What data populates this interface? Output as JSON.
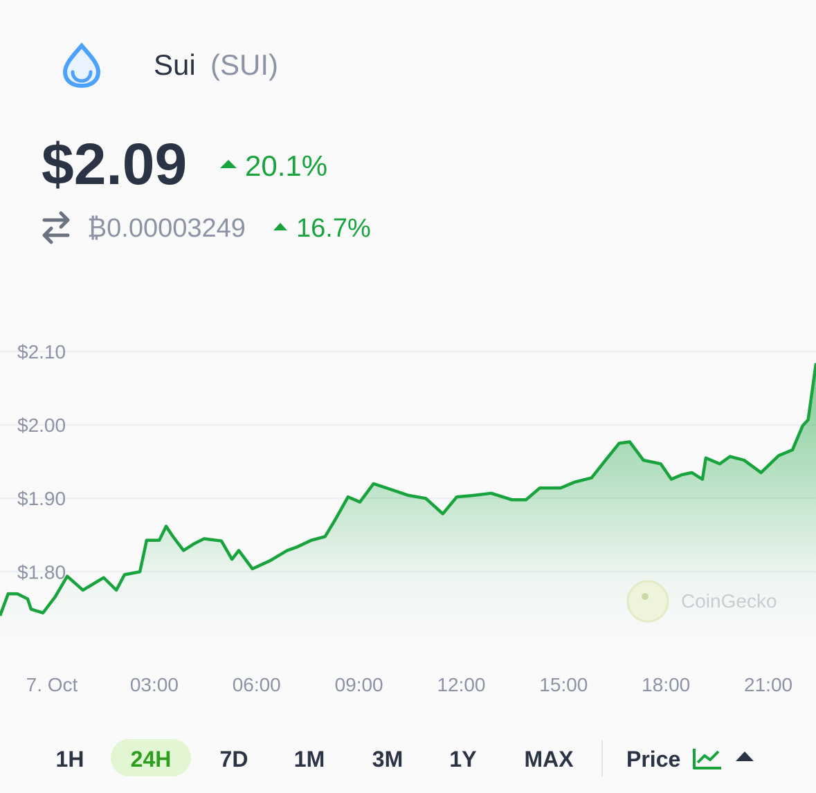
{
  "header": {
    "name": "Sui",
    "symbol": "(SUI)"
  },
  "price": "$2.09",
  "price_change": "20.1%",
  "btc_price": "₿0.00003249",
  "btc_change": "16.7%",
  "watermark": "CoinGecko",
  "range_tabs": [
    "1H",
    "24H",
    "7D",
    "1M",
    "3M",
    "1Y",
    "MAX"
  ],
  "active_tab": 1,
  "metric": "Price",
  "chart_data": {
    "type": "line",
    "color": "#18a33c",
    "grid": true,
    "x": [
      -1.4,
      -1.16,
      -0.89,
      -0.59,
      -0.49,
      -0.14,
      0.22,
      0.57,
      1.03,
      1.64,
      2.01,
      2.25,
      2.7,
      2.9,
      3.27,
      3.47,
      3.67,
      3.98,
      4.28,
      4.58,
      5.09,
      5.4,
      5.6,
      6.0,
      6.51,
      7.02,
      7.32,
      7.73,
      8.13,
      8.44,
      8.8,
      9.15,
      9.55,
      10.06,
      10.57,
      11.08,
      11.58,
      11.99,
      12.49,
      13.0,
      13.61,
      14.02,
      14.42,
      15.03,
      15.44,
      15.94,
      16.35,
      16.75,
      17.06,
      17.46,
      17.97,
      18.28,
      18.58,
      18.88,
      19.19,
      19.29,
      19.7,
      20.0,
      20.41,
      20.91,
      21.42,
      21.83,
      22.13,
      22.29,
      22.52
    ],
    "values": [
      1.74,
      1.77,
      1.77,
      1.763,
      1.749,
      1.744,
      1.766,
      1.794,
      1.775,
      1.792,
      1.775,
      1.796,
      1.8,
      1.843,
      1.843,
      1.862,
      1.848,
      1.829,
      1.838,
      1.845,
      1.842,
      1.817,
      1.829,
      1.804,
      1.815,
      1.829,
      1.834,
      1.843,
      1.848,
      1.872,
      1.902,
      1.895,
      1.92,
      1.912,
      1.904,
      1.9,
      1.879,
      1.902,
      1.904,
      1.907,
      1.898,
      1.898,
      1.914,
      1.914,
      1.922,
      1.928,
      1.952,
      1.975,
      1.977,
      1.952,
      1.947,
      1.926,
      1.932,
      1.935,
      1.926,
      1.955,
      1.947,
      1.957,
      1.952,
      1.935,
      1.958,
      1.966,
      1.999,
      2.007,
      2.084
    ],
    "xlim": [
      -1.4,
      22.52
    ],
    "ylim": [
      1.69,
      2.165
    ],
    "xticks": [
      {
        "value": 0,
        "label": "7. Oct"
      },
      {
        "value": 3,
        "label": "03:00"
      },
      {
        "value": 6,
        "label": "06:00"
      },
      {
        "value": 9,
        "label": "09:00"
      },
      {
        "value": 12,
        "label": "12:00"
      },
      {
        "value": 15,
        "label": "15:00"
      },
      {
        "value": 18,
        "label": "18:00"
      },
      {
        "value": 21,
        "label": "21:00"
      }
    ],
    "yticks": [
      {
        "value": 1.8,
        "label": "$1.80"
      },
      {
        "value": 1.9,
        "label": "$1.90"
      },
      {
        "value": 2.0,
        "label": "$2.00"
      },
      {
        "value": 2.1,
        "label": "$2.10"
      }
    ]
  }
}
